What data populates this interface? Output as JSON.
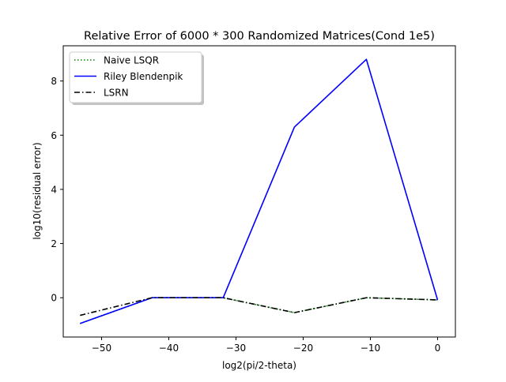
{
  "chart_data": {
    "type": "line",
    "title": "Relative Error of 6000 * 300 Randomized Matrices(Cond 1e5)",
    "xlabel": "log2(pi/2-theta)",
    "ylabel": "log10(residual error)",
    "xlim": [
      -55.7,
      2.65
    ],
    "ylim": [
      -1.45,
      9.3
    ],
    "xticks": [
      -50,
      -40,
      -30,
      -20,
      -10,
      0
    ],
    "xtick_labels": [
      "−50",
      "−40",
      "−30",
      "−20",
      "−10",
      "0"
    ],
    "yticks": [
      0,
      2,
      4,
      6,
      8
    ],
    "ytick_labels": [
      "0",
      "2",
      "4",
      "6",
      "8"
    ],
    "grid": false,
    "legend_position": "top-left",
    "series": [
      {
        "name": "Naive LSQR",
        "color": "#008000",
        "line_style": "dotted",
        "x": [
          -53.2,
          -42.5,
          -31.9,
          -21.3,
          -10.6,
          0
        ],
        "y": [
          -0.95,
          0.0,
          0.0,
          -0.55,
          0.0,
          -0.08
        ]
      },
      {
        "name": "Riley Blendenpik",
        "color": "#0000ff",
        "line_style": "solid",
        "x": [
          -53.2,
          -42.5,
          -31.9,
          -21.3,
          -10.6,
          0
        ],
        "y": [
          -0.95,
          0.0,
          0.0,
          6.3,
          8.8,
          -0.08
        ]
      },
      {
        "name": "LSRN",
        "color": "#000000",
        "line_style": "dashdot",
        "x": [
          -53.2,
          -42.5,
          -31.9,
          -21.3,
          -10.6,
          0
        ],
        "y": [
          -0.65,
          0.0,
          0.0,
          -0.55,
          0.0,
          -0.08
        ]
      }
    ]
  }
}
